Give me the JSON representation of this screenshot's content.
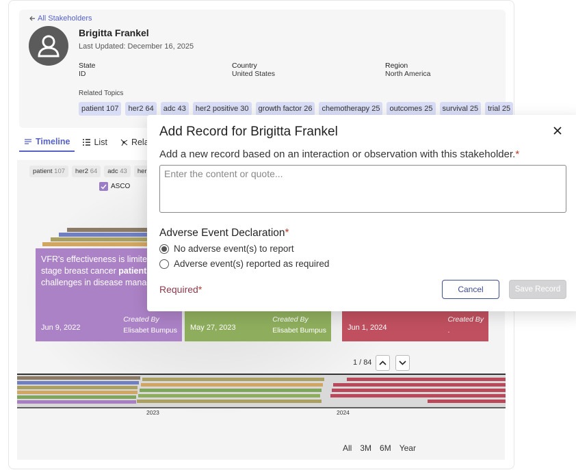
{
  "back_link": "All Stakeholders",
  "profile": {
    "name": "Brigitta Frankel",
    "last_updated": "Last Updated: December 16, 2025",
    "fields": [
      {
        "label": "State",
        "value": "ID"
      },
      {
        "label": "Country",
        "value": "United States"
      },
      {
        "label": "Region",
        "value": "North America"
      }
    ],
    "related_topics_label": "Related Topics",
    "topics": [
      {
        "name": "patient",
        "count": 107
      },
      {
        "name": "her2",
        "count": 64
      },
      {
        "name": "adc",
        "count": 43
      },
      {
        "name": "her2 positive",
        "count": 30
      },
      {
        "name": "growth factor",
        "count": 26
      },
      {
        "name": "chemotherapy",
        "count": 25
      },
      {
        "name": "outcomes",
        "count": 25
      },
      {
        "name": "survival",
        "count": 25
      },
      {
        "name": "trial",
        "count": 25
      }
    ]
  },
  "tabs": [
    "Timeline",
    "List",
    "Relation"
  ],
  "timeline": {
    "filter_label": "ASCO",
    "cards": [
      {
        "text_lines": [
          {
            "text": "VFR's effectiveness is limited"
          },
          {
            "text": "stage breast cancer",
            "bold": "patients,"
          },
          {
            "text": "challenges in disease manage"
          }
        ],
        "date": "Jun 9, 2022",
        "created_by": "Created By",
        "author": "Elisabet Bumpus"
      },
      {
        "date": "May 27, 2023",
        "created_by": "Created By",
        "author": "Elisabet Bumpus"
      },
      {
        "date": "Jun 1, 2024",
        "created_by": "Created By",
        "author": "."
      }
    ],
    "pager": {
      "current": 1,
      "separator": "/",
      "total": 84
    },
    "years": [
      "2023",
      "2024"
    ],
    "ranges": [
      "All",
      "3M",
      "6M",
      "Year"
    ]
  },
  "modal": {
    "title": "Add Record for Brigitta Frankel",
    "required_mark": "*",
    "prompt": "Add a new record based on an interaction or observation with this stakeholder.",
    "placeholder": "Enter the content or quote...",
    "section": "Adverse Event Declaration",
    "options": [
      "No adverse event(s) to report",
      "Adverse event(s) reported as required"
    ],
    "required_note": "Required",
    "cancel": "Cancel",
    "save": "Save Record"
  }
}
